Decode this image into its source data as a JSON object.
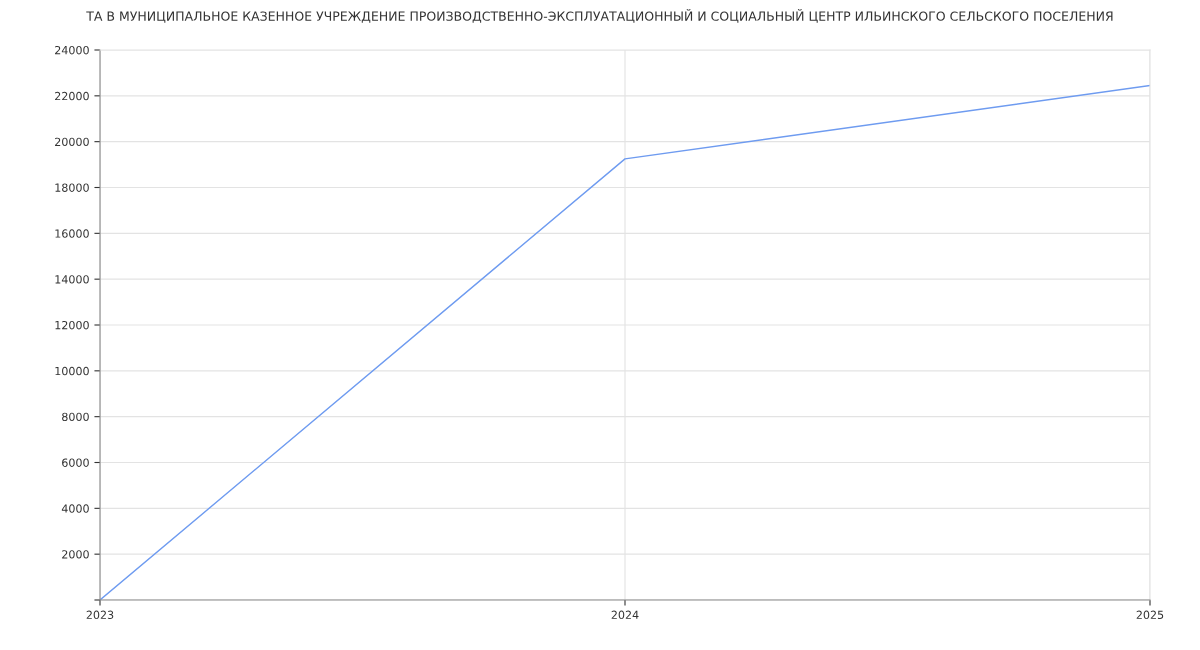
{
  "chart_data": {
    "type": "line",
    "title": "ТА В МУНИЦИПАЛЬНОЕ КАЗЕННОЕ УЧРЕЖДЕНИЕ ПРОИЗВОДСТВЕННО-ЭКСПЛУАТАЦИОННЫЙ И СОЦИАЛЬНЫЙ ЦЕНТР ИЛЬИНСКОГО СЕЛЬСКОГО ПОСЕЛЕНИЯ",
    "x": [
      2023,
      2024,
      2025
    ],
    "series": [
      {
        "color": "#6e9bf0",
        "values": [
          0,
          19250,
          22450
        ]
      }
    ],
    "xlim": [
      2023,
      2025
    ],
    "xticks": [
      2023,
      2024,
      2025
    ],
    "ylim": [
      0,
      24000
    ],
    "yticks": [
      {
        "value": 0,
        "label": null
      },
      2000,
      4000,
      6000,
      8000,
      10000,
      12000,
      14000,
      16000,
      18000,
      20000,
      22000,
      24000
    ],
    "grid": true,
    "legend": false,
    "marker": "none",
    "line_style": "solid"
  }
}
